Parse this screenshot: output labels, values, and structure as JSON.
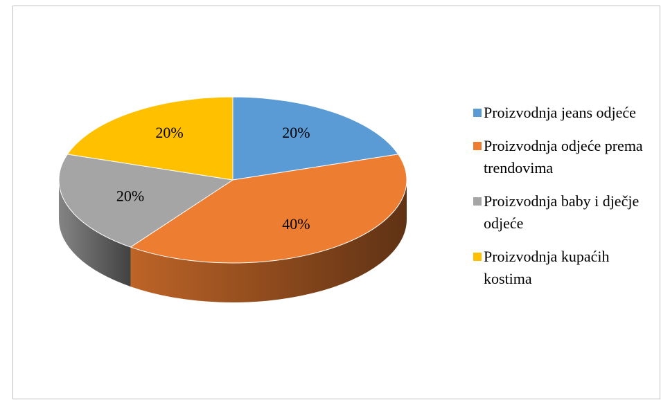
{
  "chart_data": {
    "type": "pie",
    "categories": [
      "Proizvodnja jeans odjeće",
      "Proizvodnja odjeće prema trendovima",
      "Proizvodnja baby i dječje odjeće",
      "Proizvodnja kupaćih kostima"
    ],
    "values": [
      20,
      40,
      20,
      20
    ],
    "value_labels": [
      "20%",
      "40%",
      "20%",
      "20%"
    ],
    "colors": [
      "#5b9bd5",
      "#ed7d31",
      "#a5a5a5",
      "#ffc000"
    ],
    "legend": "right"
  }
}
